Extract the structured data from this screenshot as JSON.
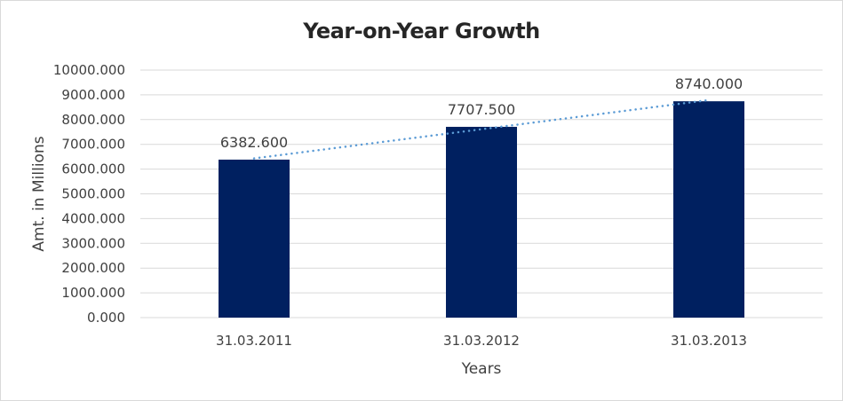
{
  "chart_data": {
    "type": "bar",
    "title": "Year-on-Year Growth",
    "xlabel": "Years",
    "ylabel": "Amt. in Millions",
    "categories": [
      "31.03.2011",
      "31.03.2012",
      "31.03.2013"
    ],
    "values": [
      6382.6,
      7707.5,
      8740.0
    ],
    "data_labels": [
      "6382.600",
      "7707.500",
      "8740.000"
    ],
    "ylim": [
      0,
      10000
    ],
    "yticks": [
      0,
      1000,
      2000,
      3000,
      4000,
      5000,
      6000,
      7000,
      8000,
      9000,
      10000
    ],
    "ytick_labels": [
      "0.000",
      "1000.000",
      "2000.000",
      "3000.000",
      "4000.000",
      "5000.000",
      "6000.000",
      "7000.000",
      "8000.000",
      "9000.000",
      "10000.000"
    ],
    "grid": true,
    "trendline": "linear dotted",
    "colors": {
      "bar": "#002060",
      "trendline": "#5b9bd5",
      "grid": "#d9d9d9",
      "text": "#404040"
    }
  }
}
